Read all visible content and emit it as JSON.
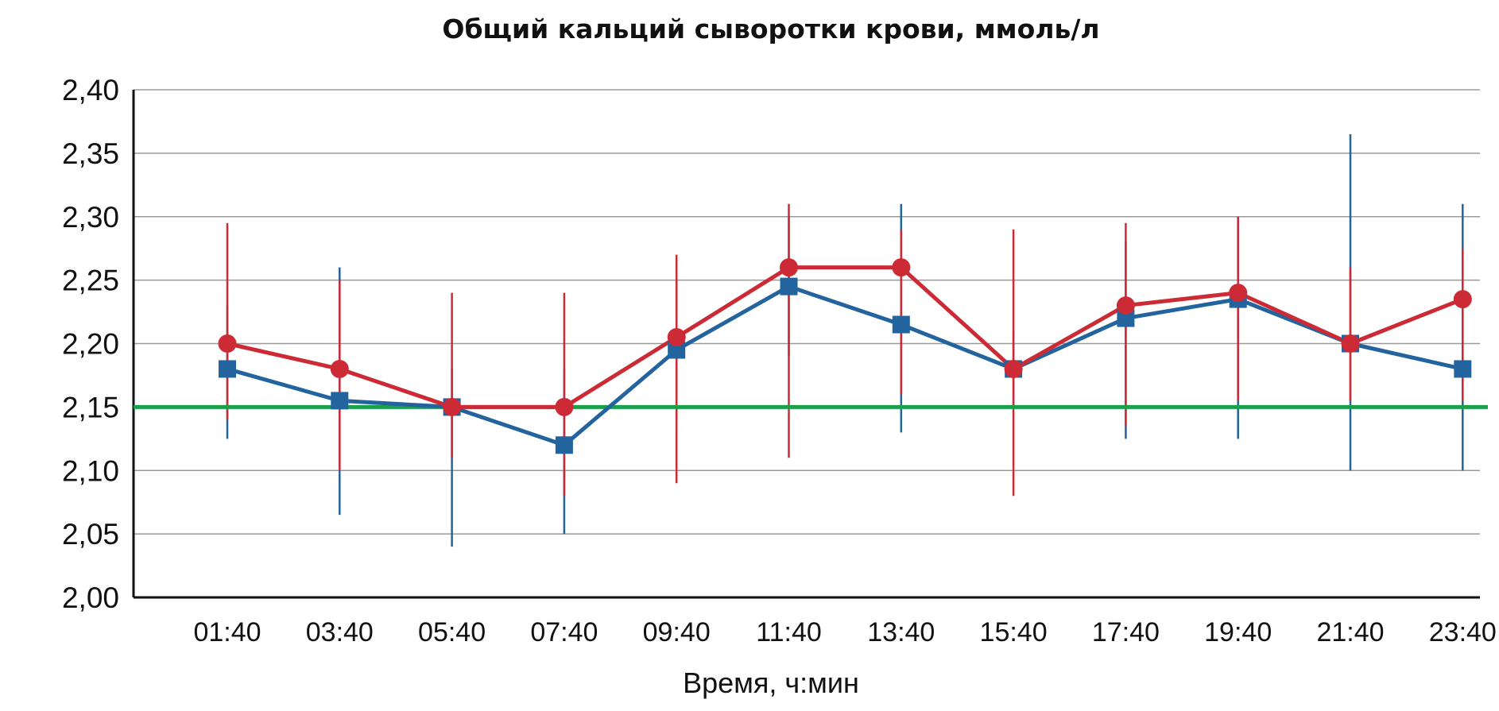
{
  "chart_data": {
    "type": "line",
    "title": "Общий кальций сыворотки крови, ммоль/л",
    "xlabel": "Время, ч:мин",
    "ylabel": "",
    "ylim": [
      2.0,
      2.4
    ],
    "y_ticks": [
      "2,00",
      "2,05",
      "2,10",
      "2,15",
      "2,20",
      "2,25",
      "2,30",
      "2,35",
      "2,40"
    ],
    "y_tick_values": [
      2.0,
      2.05,
      2.1,
      2.15,
      2.2,
      2.25,
      2.3,
      2.35,
      2.4
    ],
    "grid": true,
    "categories": [
      "01:40",
      "03:40",
      "05:40",
      "07:40",
      "09:40",
      "11:40",
      "13:40",
      "15:40",
      "17:40",
      "19:40",
      "21:40",
      "23:40"
    ],
    "reference_line": {
      "value": 2.15,
      "color": "#1aa04a"
    },
    "series": [
      {
        "marker": "square",
        "color": "#23639e",
        "values": [
          2.18,
          2.155,
          2.15,
          2.12,
          2.195,
          2.245,
          2.215,
          2.18,
          2.22,
          2.235,
          2.2,
          2.18
        ],
        "error_low": [
          2.125,
          2.065,
          2.04,
          2.05,
          2.14,
          2.19,
          2.13,
          2.15,
          2.125,
          2.125,
          2.1,
          2.1
        ],
        "error_high": [
          2.23,
          2.26,
          2.18,
          2.18,
          2.25,
          2.3,
          2.31,
          2.21,
          2.28,
          2.3,
          2.365,
          2.31
        ]
      },
      {
        "marker": "circle",
        "color": "#cc2b36",
        "values": [
          2.2,
          2.18,
          2.15,
          2.15,
          2.205,
          2.26,
          2.26,
          2.18,
          2.23,
          2.24,
          2.2,
          2.235
        ],
        "error_low": [
          2.14,
          2.1,
          2.11,
          2.08,
          2.09,
          2.11,
          2.16,
          2.08,
          2.135,
          2.155,
          2.155,
          2.155
        ],
        "error_high": [
          2.295,
          2.25,
          2.24,
          2.24,
          2.27,
          2.31,
          2.29,
          2.29,
          2.295,
          2.3,
          2.26,
          2.275
        ]
      }
    ]
  }
}
